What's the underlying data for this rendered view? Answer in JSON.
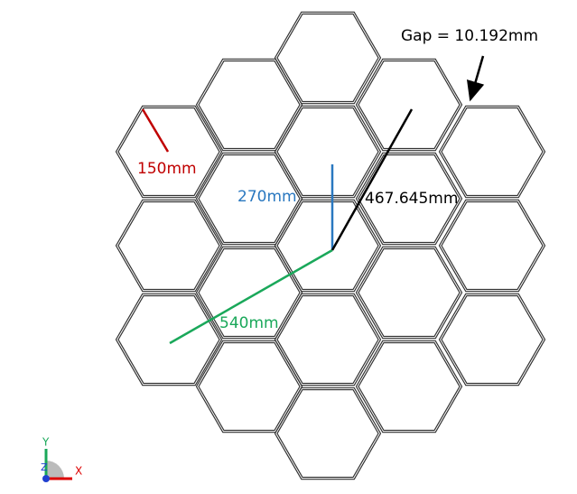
{
  "annotations": {
    "gap": "Gap = 10.192mm",
    "hex_edge": "150mm",
    "height": "270mm",
    "diagonal": "467.645mm",
    "radius": "540mm"
  },
  "axes_triad": {
    "y": "Y",
    "z": "Z",
    "x": "X"
  }
}
